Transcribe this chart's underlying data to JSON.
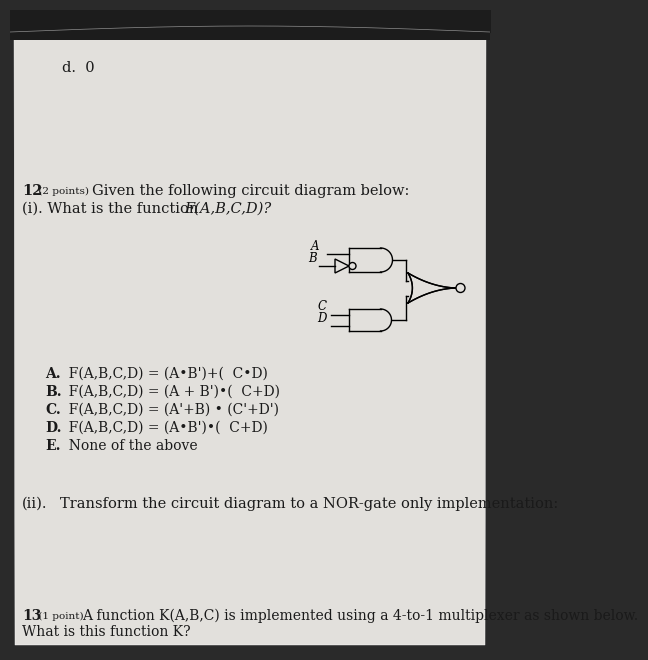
{
  "bg_color": "#2a2a2a",
  "paper_color": "#e2e0dc",
  "title_d": "d.  0",
  "q12_label": "12",
  "q12_points": " (2 points) ",
  "q12_text": "Given the following circuit diagram below:",
  "q12i_text": " (i). What is the function ",
  "q12i_func": "F(A,B,C,D)?",
  "options_letter": [
    "A.",
    "B.",
    "C.",
    "D.",
    "E."
  ],
  "options_text": [
    "  F(A,B,C,D) = (A•B')+(  C•D)",
    "  F(A,B,C,D) = (A + B')•(  C+D)",
    "  F(A,B,C,D) = (A'+B) • (C'+D')",
    "  F(A,B,C,D) = (A•B')•(  C+D)",
    "  None of the above"
  ],
  "q12ii_label": "(ii).",
  "q12ii_text": "Transform the circuit diagram to a NOR-gate only implementation:",
  "q13_label": "13",
  "q13_points": " (1 point) ",
  "q13_text": "A function K(A,B,C) is implemented using a 4-to-1 multiplexer as shown below.",
  "q13_text2": "What is this function K?"
}
